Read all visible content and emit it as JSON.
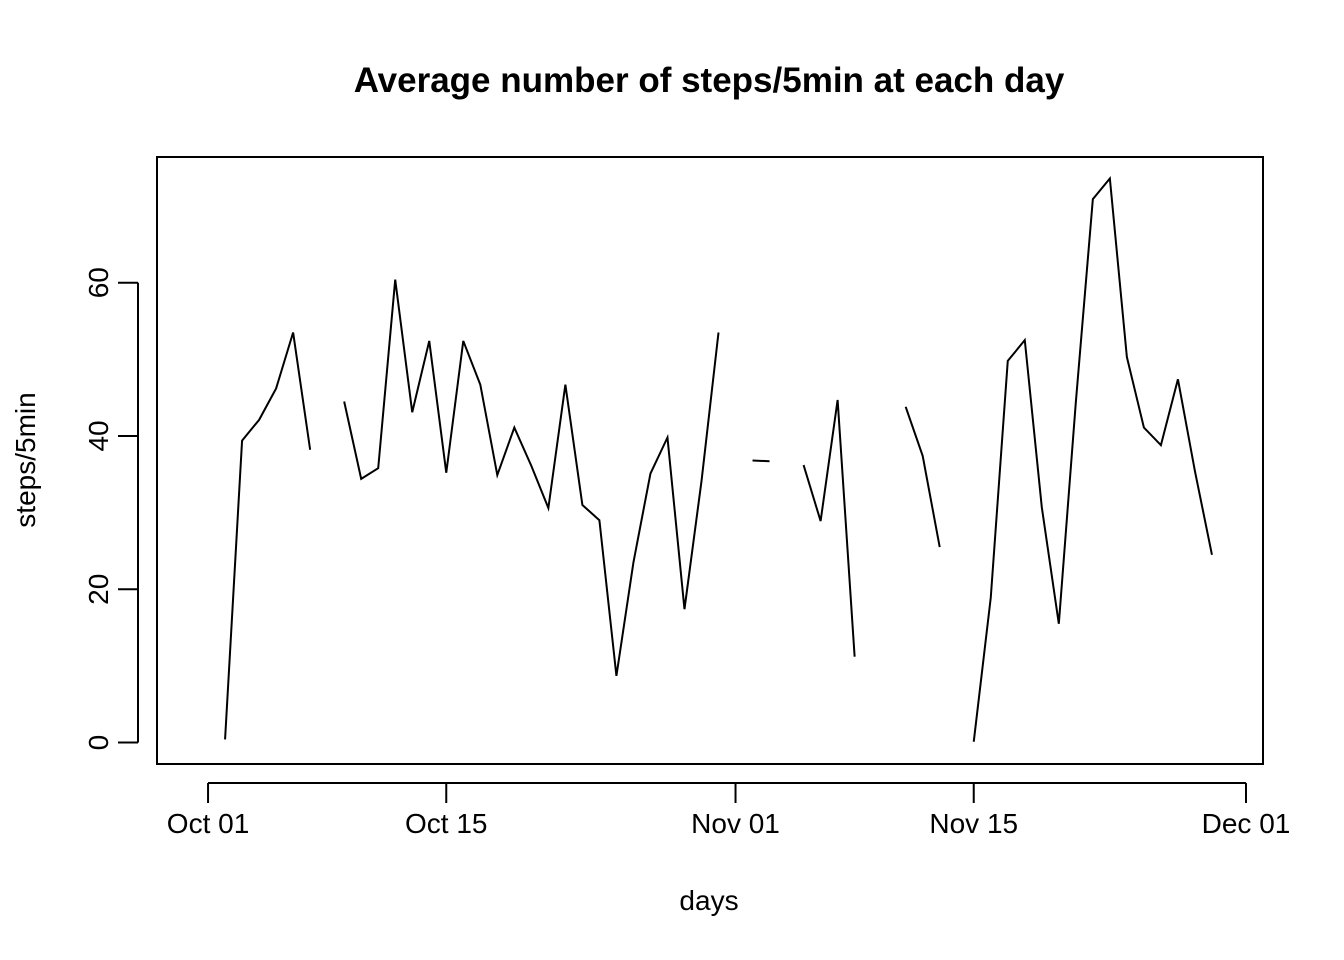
{
  "chart_data": {
    "type": "line",
    "title": "Average number of steps/5min at each day",
    "xlabel": "days",
    "ylabel": "steps/5min",
    "xlim": [
      "2012-09-28",
      "2012-12-02"
    ],
    "ylim": [
      -2.8,
      76.4
    ],
    "x_ticks": [
      {
        "date": "2012-10-01",
        "label": "Oct 01"
      },
      {
        "date": "2012-10-15",
        "label": "Oct 15"
      },
      {
        "date": "2012-11-01",
        "label": "Nov 01"
      },
      {
        "date": "2012-11-15",
        "label": "Nov 15"
      },
      {
        "date": "2012-12-01",
        "label": "Dec 01"
      }
    ],
    "y_ticks": [
      {
        "value": 0,
        "label": "0"
      },
      {
        "value": 20,
        "label": "20"
      },
      {
        "value": 40,
        "label": "40"
      },
      {
        "value": 60,
        "label": "60"
      }
    ],
    "grid": false,
    "series": [
      {
        "color": "#000000",
        "points": [
          {
            "x": "2012-10-01",
            "y": null
          },
          {
            "x": "2012-10-02",
            "y": 0.4
          },
          {
            "x": "2012-10-03",
            "y": 39.4
          },
          {
            "x": "2012-10-04",
            "y": 42.1
          },
          {
            "x": "2012-10-05",
            "y": 46.2
          },
          {
            "x": "2012-10-06",
            "y": 53.5
          },
          {
            "x": "2012-10-07",
            "y": 38.2
          },
          {
            "x": "2012-10-08",
            "y": null
          },
          {
            "x": "2012-10-09",
            "y": 44.5
          },
          {
            "x": "2012-10-10",
            "y": 34.4
          },
          {
            "x": "2012-10-11",
            "y": 35.8
          },
          {
            "x": "2012-10-12",
            "y": 60.4
          },
          {
            "x": "2012-10-13",
            "y": 43.1
          },
          {
            "x": "2012-10-14",
            "y": 52.4
          },
          {
            "x": "2012-10-15",
            "y": 35.2
          },
          {
            "x": "2012-10-16",
            "y": 52.4
          },
          {
            "x": "2012-10-17",
            "y": 46.7
          },
          {
            "x": "2012-10-18",
            "y": 34.9
          },
          {
            "x": "2012-10-19",
            "y": 41.1
          },
          {
            "x": "2012-10-20",
            "y": 36.1
          },
          {
            "x": "2012-10-21",
            "y": 30.6
          },
          {
            "x": "2012-10-22",
            "y": 46.7
          },
          {
            "x": "2012-10-23",
            "y": 31.0
          },
          {
            "x": "2012-10-24",
            "y": 29.0
          },
          {
            "x": "2012-10-25",
            "y": 8.7
          },
          {
            "x": "2012-10-26",
            "y": 23.5
          },
          {
            "x": "2012-10-27",
            "y": 35.1
          },
          {
            "x": "2012-10-28",
            "y": 39.8
          },
          {
            "x": "2012-10-29",
            "y": 17.4
          },
          {
            "x": "2012-10-30",
            "y": 34.1
          },
          {
            "x": "2012-10-31",
            "y": 53.5
          },
          {
            "x": "2012-11-01",
            "y": null
          },
          {
            "x": "2012-11-02",
            "y": 36.8
          },
          {
            "x": "2012-11-03",
            "y": 36.7
          },
          {
            "x": "2012-11-04",
            "y": null
          },
          {
            "x": "2012-11-05",
            "y": 36.2
          },
          {
            "x": "2012-11-06",
            "y": 28.9
          },
          {
            "x": "2012-11-07",
            "y": 44.7
          },
          {
            "x": "2012-11-08",
            "y": 11.2
          },
          {
            "x": "2012-11-09",
            "y": null
          },
          {
            "x": "2012-11-10",
            "y": null
          },
          {
            "x": "2012-11-11",
            "y": 43.8
          },
          {
            "x": "2012-11-12",
            "y": 37.4
          },
          {
            "x": "2012-11-13",
            "y": 25.5
          },
          {
            "x": "2012-11-14",
            "y": null
          },
          {
            "x": "2012-11-15",
            "y": 0.1
          },
          {
            "x": "2012-11-16",
            "y": 18.9
          },
          {
            "x": "2012-11-17",
            "y": 49.8
          },
          {
            "x": "2012-11-18",
            "y": 52.5
          },
          {
            "x": "2012-11-19",
            "y": 30.7
          },
          {
            "x": "2012-11-20",
            "y": 15.5
          },
          {
            "x": "2012-11-21",
            "y": 44.4
          },
          {
            "x": "2012-11-22",
            "y": 70.9
          },
          {
            "x": "2012-11-23",
            "y": 73.6
          },
          {
            "x": "2012-11-24",
            "y": 50.3
          },
          {
            "x": "2012-11-25",
            "y": 41.1
          },
          {
            "x": "2012-11-26",
            "y": 38.8
          },
          {
            "x": "2012-11-27",
            "y": 47.4
          },
          {
            "x": "2012-11-28",
            "y": 35.4
          },
          {
            "x": "2012-11-29",
            "y": 24.5
          },
          {
            "x": "2012-11-30",
            "y": null
          }
        ]
      }
    ]
  }
}
